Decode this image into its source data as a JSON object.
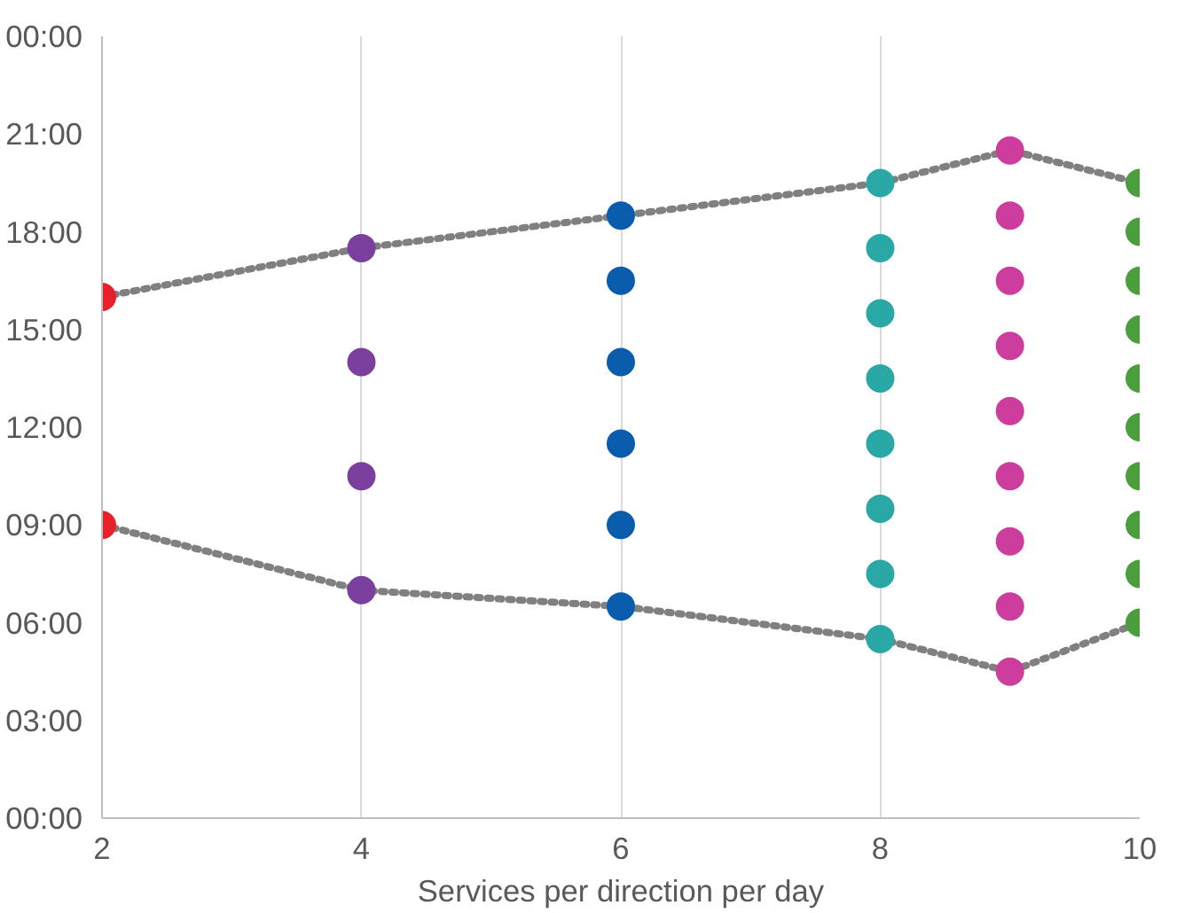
{
  "chart_data": {
    "type": "scatter",
    "xlabel": "Services per direction per day",
    "marker": "circle",
    "grid": "x",
    "xlim": [
      2,
      10
    ],
    "xticks": [
      2,
      4,
      6,
      8,
      10
    ],
    "ylim": [
      0,
      24
    ],
    "yticks": [
      {
        "value": 0,
        "label": "00:00"
      },
      {
        "value": 3,
        "label": "03:00"
      },
      {
        "value": 6,
        "label": "06:00"
      },
      {
        "value": 9,
        "label": "09:00"
      },
      {
        "value": 12,
        "label": "12:00"
      },
      {
        "value": 15,
        "label": "15:00"
      },
      {
        "value": 18,
        "label": "18:00"
      },
      {
        "value": 21,
        "label": "21:00"
      },
      {
        "value": 24,
        "label": "00:00"
      }
    ],
    "series": [
      {
        "type": "line",
        "line_style": "dotted",
        "marker": "none",
        "color": "#808080",
        "x": [
          2,
          4,
          6,
          8,
          9,
          10
        ],
        "values": [
          16,
          17.5,
          18.5,
          19.5,
          20.5,
          19.5
        ]
      },
      {
        "type": "line",
        "line_style": "dotted",
        "marker": "none",
        "color": "#808080",
        "x": [
          2,
          4,
          6,
          8,
          9,
          10
        ],
        "values": [
          9,
          7,
          6.5,
          5.5,
          4.5,
          6
        ]
      },
      {
        "color": "#e8202a",
        "x": [
          2,
          2
        ],
        "values": [
          16,
          9
        ]
      },
      {
        "color": "#7b3f9e",
        "x": [
          4,
          4,
          4,
          4
        ],
        "values": [
          17.5,
          14,
          10.5,
          7
        ]
      },
      {
        "color": "#0a5cad",
        "x": [
          6,
          6,
          6,
          6,
          6,
          6
        ],
        "values": [
          18.5,
          16.5,
          14,
          11.5,
          9,
          6.5
        ]
      },
      {
        "color": "#2aa8a6",
        "x": [
          8,
          8,
          8,
          8,
          8,
          8,
          8,
          8
        ],
        "values": [
          19.5,
          17.5,
          15.5,
          13.5,
          11.5,
          9.5,
          7.5,
          5.5
        ]
      },
      {
        "color": "#cc3d9e",
        "x": [
          9,
          9,
          9,
          9,
          9,
          9,
          9,
          9,
          9
        ],
        "values": [
          20.5,
          18.5,
          16.5,
          14.5,
          12.5,
          10.5,
          8.5,
          6.5,
          4.5
        ]
      },
      {
        "color": "#4a9e3c",
        "x": [
          10,
          10,
          10,
          10,
          10,
          10,
          10,
          10,
          10,
          10
        ],
        "values": [
          19.5,
          18,
          16.5,
          15,
          13.5,
          12,
          10.5,
          9,
          7.5,
          6
        ]
      }
    ]
  }
}
